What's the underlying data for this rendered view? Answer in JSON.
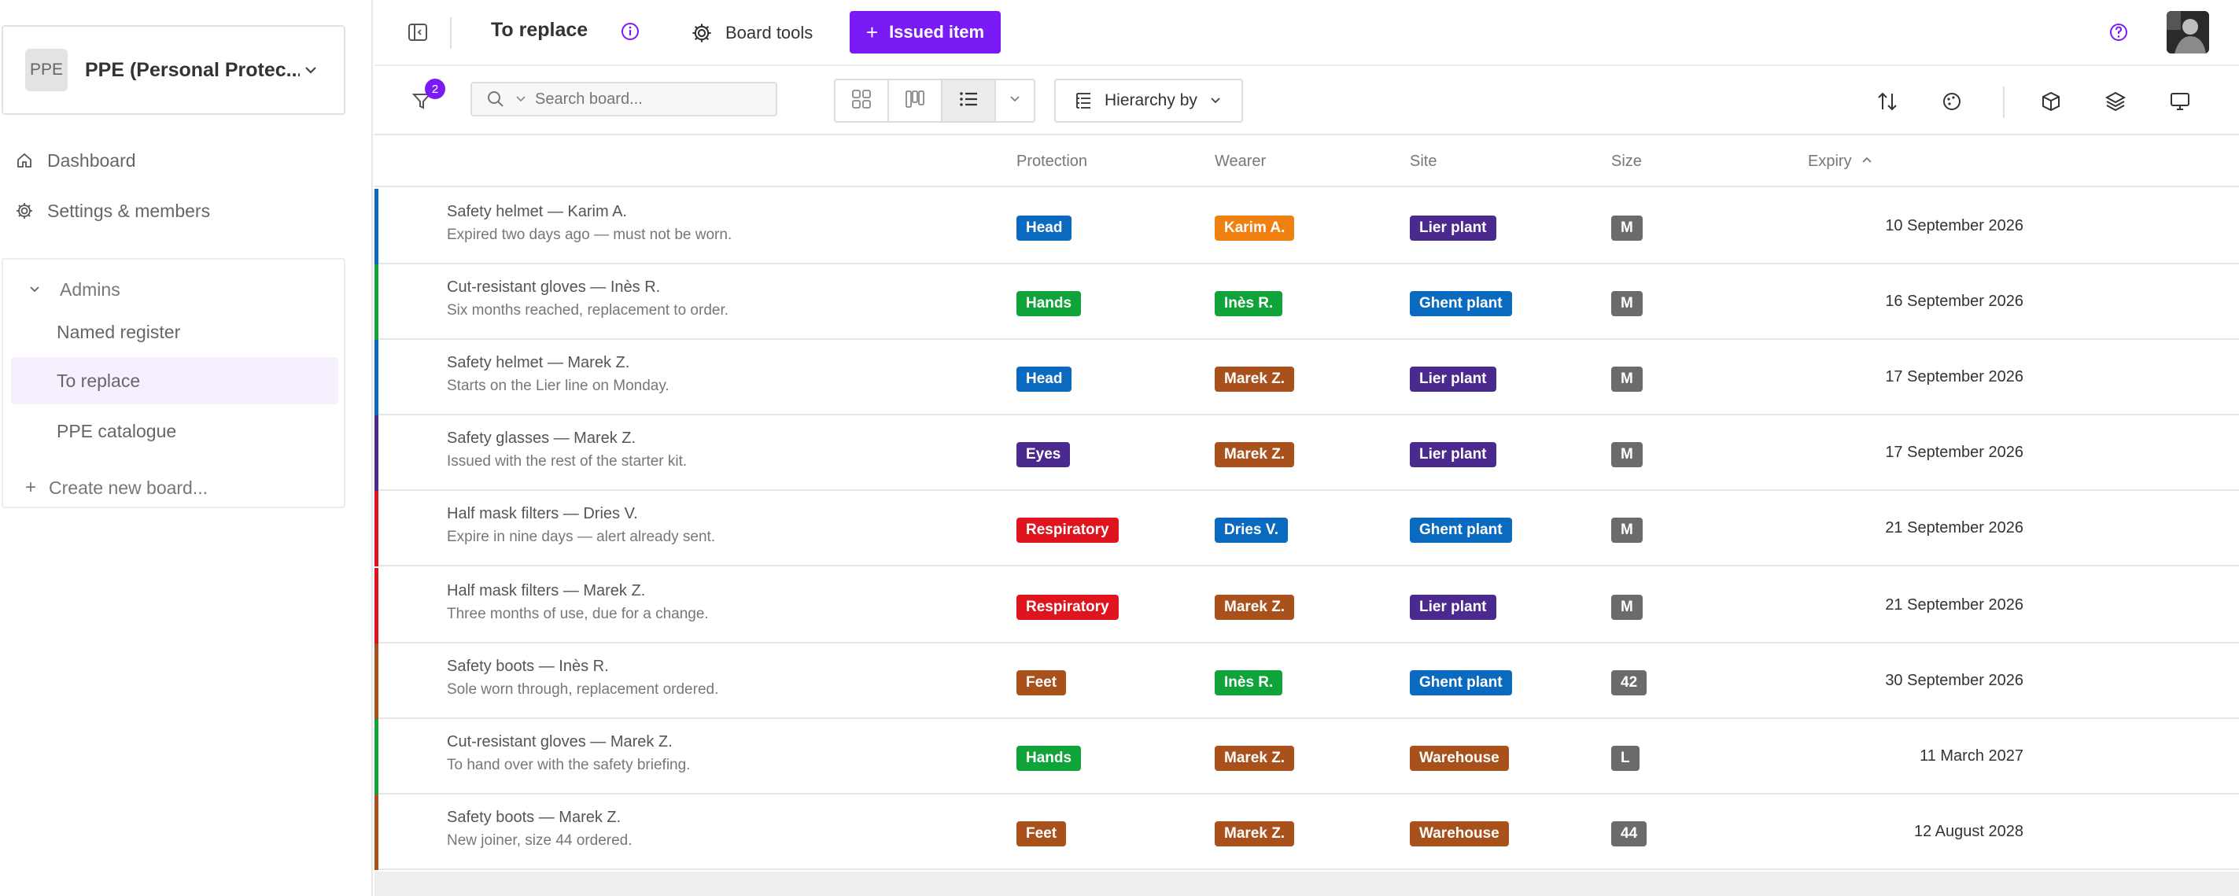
{
  "workspace": {
    "initials": "PPE",
    "name": "PPE (Personal Protec..."
  },
  "nav": {
    "dashboard": "Dashboard",
    "settings": "Settings & members"
  },
  "boards": {
    "group": "Admins",
    "items": [
      "Named register",
      "To replace",
      "PPE catalogue"
    ],
    "active": "To replace",
    "create": "Create new board..."
  },
  "topbar": {
    "title": "To replace",
    "board_tools": "Board tools",
    "issued_item": "Issued item"
  },
  "toolbar": {
    "filter_count": "2",
    "search_placeholder": "Search board...",
    "hierarchy": "Hierarchy by"
  },
  "columns": {
    "protection": "Protection",
    "wearer": "Wearer",
    "site": "Site",
    "size": "Size",
    "expiry": "Expiry"
  },
  "colors": {
    "accent": "#7a1bf5",
    "Head": "#0a6abf",
    "Hands": "#0fa33a",
    "Eyes": "#4b2a8f",
    "Respiratory": "#e0141e",
    "Feet": "#a8511c",
    "Lier plant": "#4b2a8f",
    "Ghent plant": "#0a6abf",
    "Warehouse": "#a8511c",
    "Karim A.": "#f08010",
    "Inès R.": "#0fa33a",
    "Marek Z.": "#a8511c",
    "Dries V.": "#0a6abf"
  },
  "rows": [
    {
      "title": "Safety helmet — Karim A.",
      "desc": "Expired two days ago — must not be worn.",
      "protection": "Head",
      "wearer": "Karim A.",
      "site": "Lier plant",
      "size": "M",
      "expiry": "10 September 2026"
    },
    {
      "title": "Cut-resistant gloves — Inès R.",
      "desc": "Six months reached, replacement to order.",
      "protection": "Hands",
      "wearer": "Inès R.",
      "site": "Ghent plant",
      "size": "M",
      "expiry": "16 September 2026"
    },
    {
      "title": "Safety helmet — Marek Z.",
      "desc": "Starts on the Lier line on Monday.",
      "protection": "Head",
      "wearer": "Marek Z.",
      "site": "Lier plant",
      "size": "M",
      "expiry": "17 September 2026"
    },
    {
      "title": "Safety glasses — Marek Z.",
      "desc": "Issued with the rest of the starter kit.",
      "protection": "Eyes",
      "wearer": "Marek Z.",
      "site": "Lier plant",
      "size": "M",
      "expiry": "17 September 2026"
    },
    {
      "title": "Half mask filters — Dries V.",
      "desc": "Expire in nine days — alert already sent.",
      "protection": "Respiratory",
      "wearer": "Dries V.",
      "site": "Ghent plant",
      "size": "M",
      "expiry": "21 September 2026"
    },
    {
      "title": "Half mask filters — Marek Z.",
      "desc": "Three months of use, due for a change.",
      "protection": "Respiratory",
      "wearer": "Marek Z.",
      "site": "Lier plant",
      "size": "M",
      "expiry": "21 September 2026"
    },
    {
      "title": "Safety boots — Inès R.",
      "desc": "Sole worn through, replacement ordered.",
      "protection": "Feet",
      "wearer": "Inès R.",
      "site": "Ghent plant",
      "size": "42",
      "expiry": "30 September 2026"
    },
    {
      "title": "Cut-resistant gloves — Marek Z.",
      "desc": "To hand over with the safety briefing.",
      "protection": "Hands",
      "wearer": "Marek Z.",
      "site": "Warehouse",
      "size": "L",
      "expiry": "11 March 2027"
    },
    {
      "title": "Safety boots — Marek Z.",
      "desc": "New joiner, size 44 ordered.",
      "protection": "Feet",
      "wearer": "Marek Z.",
      "site": "Warehouse",
      "size": "44",
      "expiry": "12 August 2028"
    }
  ]
}
